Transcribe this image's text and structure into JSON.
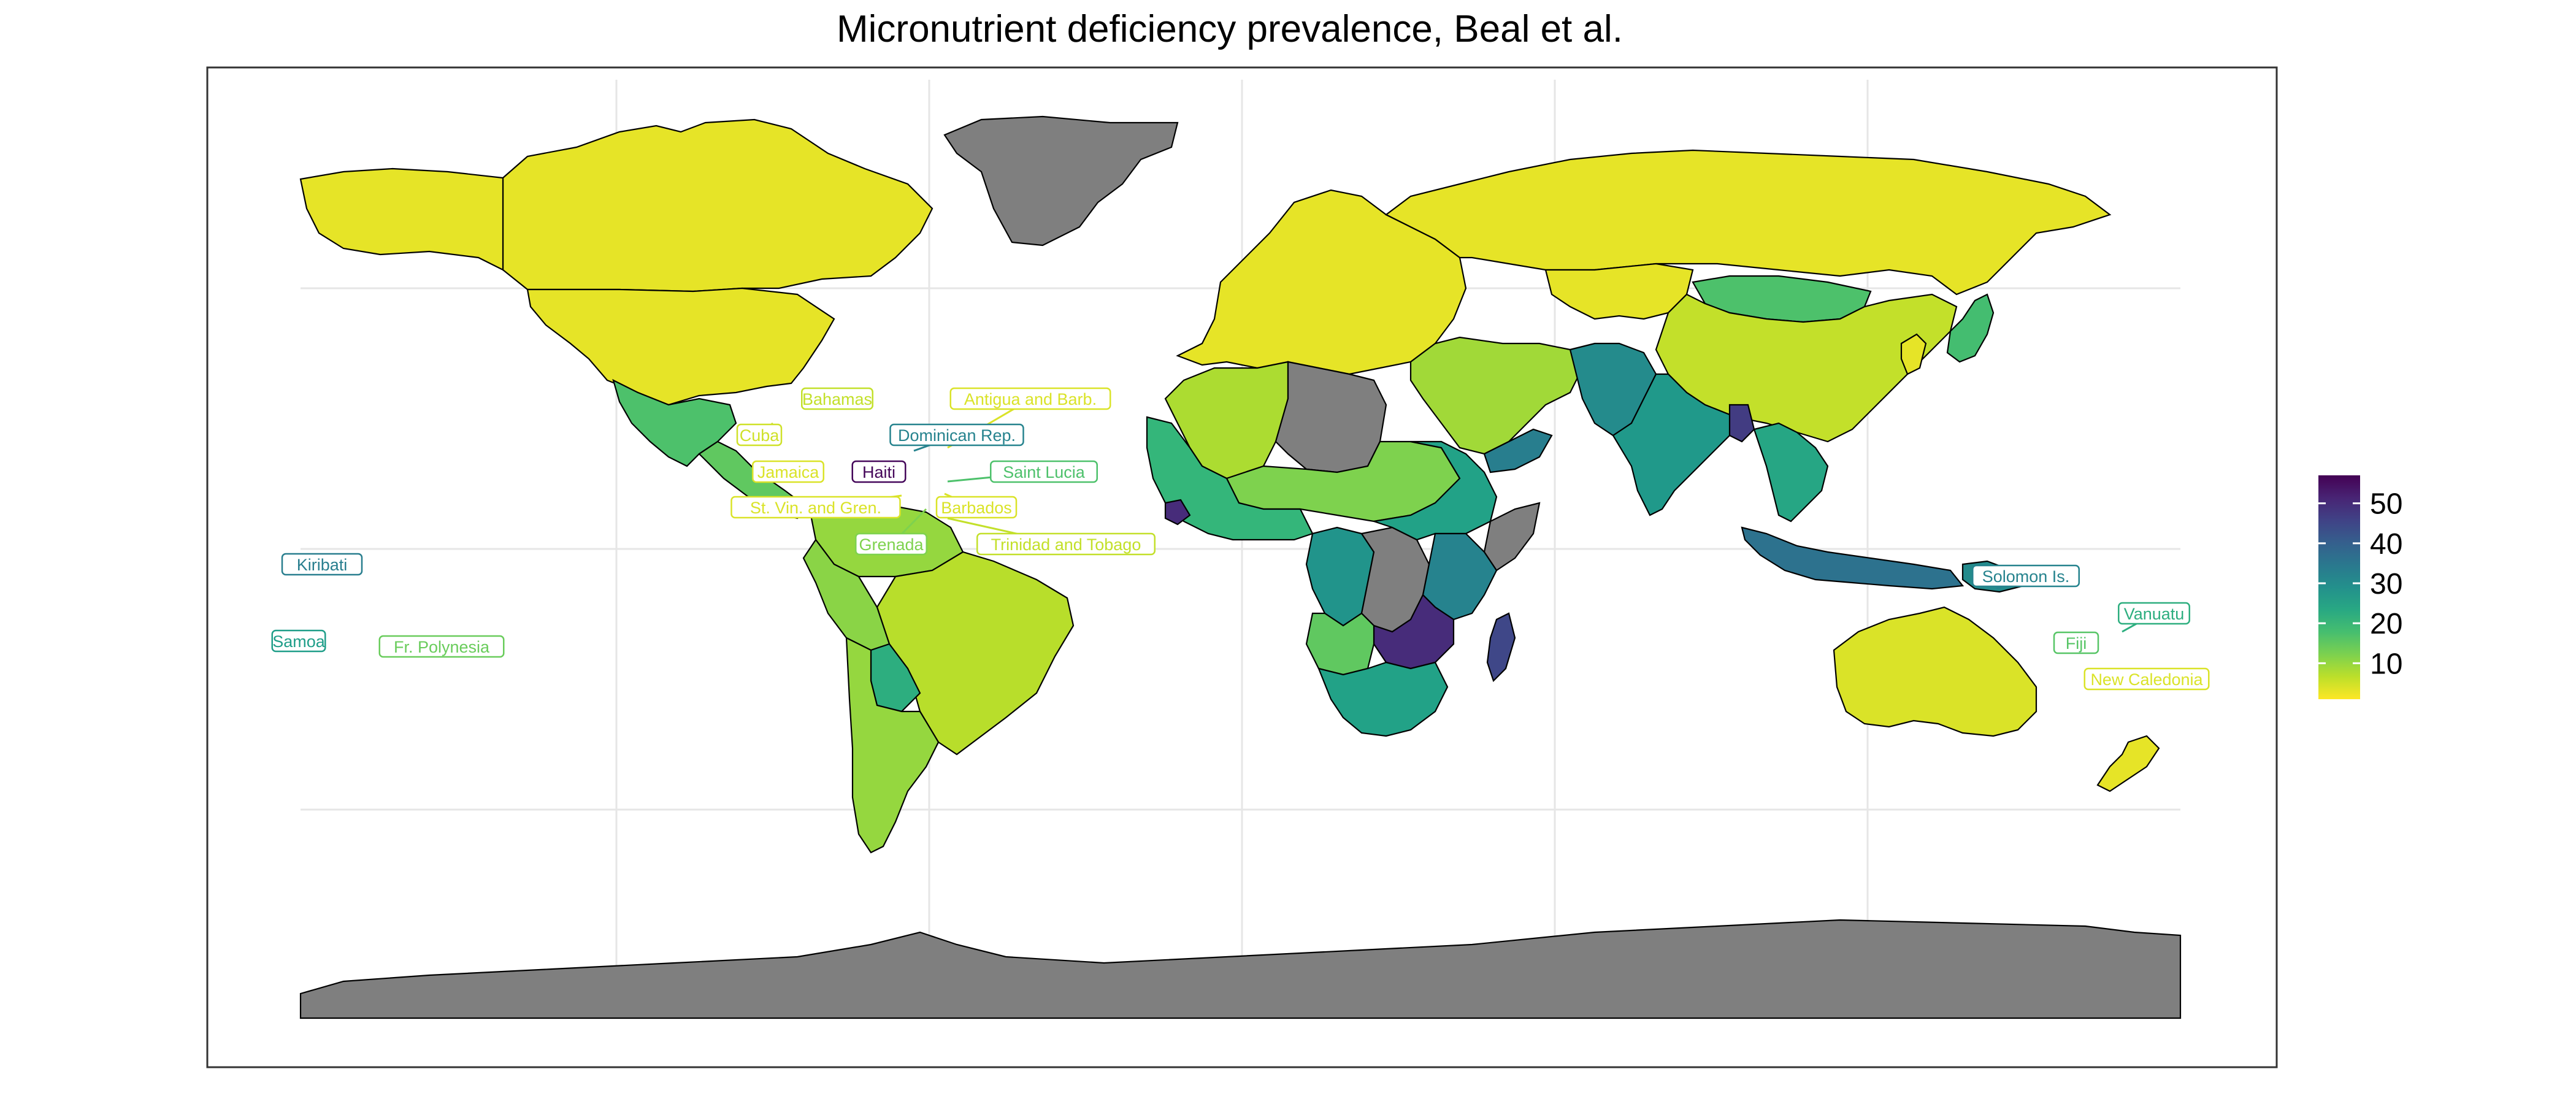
{
  "title": "Micronutrient deficiency prevalence, Beal et al.",
  "colors": {
    "no_data": "#7f7f7f",
    "panel_border": "#333333",
    "grid": "#e6e6e6"
  },
  "map_data": {
    "type": "choropleth",
    "projection": "equirectangular",
    "value_name": "",
    "scale": {
      "palette": "viridis",
      "direction": "reversed",
      "domain": [
        1,
        57
      ],
      "ticks": [
        10,
        20,
        30,
        40,
        50
      ],
      "tick_labels": [
        "10",
        "20",
        "30",
        "40",
        "50"
      ],
      "low_color": "#fde725",
      "high_color": "#440154",
      "legend_position": "right"
    },
    "grid": true,
    "regions": [
      {
        "name": "Canada",
        "value": 3
      },
      {
        "name": "Alaska",
        "value": 3
      },
      {
        "name": "United States",
        "value": 3
      },
      {
        "name": "Greenland",
        "value": null
      },
      {
        "name": "Mexico",
        "value": 17
      },
      {
        "name": "Central America",
        "value": 15
      },
      {
        "name": "Colombia / Venezuela",
        "value": 10
      },
      {
        "name": "Brazil",
        "value": 7
      },
      {
        "name": "Peru",
        "value": 11
      },
      {
        "name": "Bolivia",
        "value": 22
      },
      {
        "name": "Argentina / Chile",
        "value": 10
      },
      {
        "name": "Europe",
        "value": 3
      },
      {
        "name": "Russia",
        "value": 3
      },
      {
        "name": "Kazakhstan",
        "value": 3
      },
      {
        "name": "Mongolia",
        "value": 17
      },
      {
        "name": "China",
        "value": 6
      },
      {
        "name": "Middle East",
        "value": 9
      },
      {
        "name": "Afghanistan / Pakistan",
        "value": 30
      },
      {
        "name": "India",
        "value": 27
      },
      {
        "name": "Bangladesh",
        "value": 47
      },
      {
        "name": "Southeast Asia",
        "value": 24
      },
      {
        "name": "Indonesia",
        "value": 36
      },
      {
        "name": "Papua New Guinea",
        "value": 30
      },
      {
        "name": "Japan",
        "value": 18
      },
      {
        "name": "Korea",
        "value": 3
      },
      {
        "name": "Australia",
        "value": 4
      },
      {
        "name": "New Zealand",
        "value": 3
      },
      {
        "name": "North Africa",
        "value": 8
      },
      {
        "name": "Algeria / Libya",
        "value": null
      },
      {
        "name": "Sahel",
        "value": 12
      },
      {
        "name": "West Africa",
        "value": 20
      },
      {
        "name": "Sierra Leone",
        "value": 50
      },
      {
        "name": "Central Africa",
        "value": 28
      },
      {
        "name": "DR Congo",
        "value": null
      },
      {
        "name": "Sudan / Ethiopia",
        "value": 25
      },
      {
        "name": "Somalia",
        "value": null
      },
      {
        "name": "East Africa",
        "value": 32
      },
      {
        "name": "Zambia / Malawi",
        "value": 50
      },
      {
        "name": "Angola",
        "value": 15
      },
      {
        "name": "Southern Africa",
        "value": 25
      },
      {
        "name": "Madagascar",
        "value": 45
      },
      {
        "name": "Yemen / Oman",
        "value": 33
      },
      {
        "name": "Antarctica",
        "value": null
      }
    ],
    "labels": [
      {
        "name": "Bahamas",
        "value": 6
      },
      {
        "name": "Antigua and Barb.",
        "value": 4
      },
      {
        "name": "Cuba",
        "value": 5
      },
      {
        "name": "Dominican Rep.",
        "value": 32
      },
      {
        "name": "Jamaica",
        "value": 4
      },
      {
        "name": "Haiti",
        "value": 56
      },
      {
        "name": "Saint Lucia",
        "value": 17
      },
      {
        "name": "St. Vin. and Gren.",
        "value": 4
      },
      {
        "name": "Barbados",
        "value": 4
      },
      {
        "name": "Grenada",
        "value": 12
      },
      {
        "name": "Trinidad and Tobago",
        "value": 6
      },
      {
        "name": "Kiribati",
        "value": 33
      },
      {
        "name": "Samoa",
        "value": 26
      },
      {
        "name": "Fr. Polynesia",
        "value": 14
      },
      {
        "name": "Solomon Is.",
        "value": 32
      },
      {
        "name": "Vanuatu",
        "value": 22
      },
      {
        "name": "Fiji",
        "value": 16
      },
      {
        "name": "New Caledonia",
        "value": 4
      }
    ]
  }
}
